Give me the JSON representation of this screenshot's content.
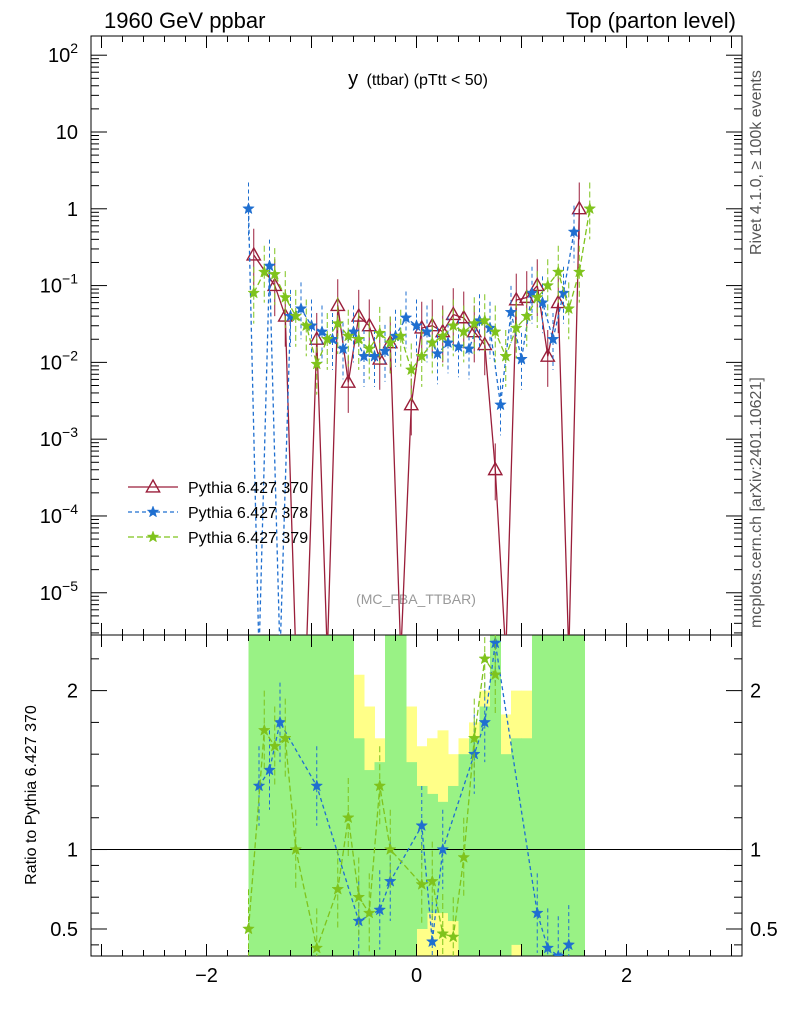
{
  "header": {
    "left": "1960 GeV ppbar",
    "right": "Top (parton level)",
    "title_main": "y",
    "title_sub": "(ttbar)  (pTtt < 50)",
    "side_top": "Rivet 4.1.0, ≥ 100k events",
    "side_bottom": "mcplots.cern.ch [arXiv:2401.10621]",
    "analysis": "(MC_FBA_TTBAR)"
  },
  "chart_data": {
    "type": "line",
    "title": "y (ttbar) (pTtt < 50)",
    "xlim": [
      -3.1,
      3.1
    ],
    "main_ylim_log10": [
      -5.55,
      2.25
    ],
    "ratio_ylim": [
      0.33,
      2.35
    ],
    "ratio_ylabel": "Ratio to Pythia 6.427 370",
    "x_ticks": [
      {
        "v": -2,
        "label": "−2"
      },
      {
        "v": 0,
        "label": "0"
      },
      {
        "v": 2,
        "label": "2"
      }
    ],
    "main_ticks": [
      {
        "exp": 2,
        "base": "10",
        "sup": "2"
      },
      {
        "exp": 1,
        "base": "10",
        "sup": ""
      },
      {
        "exp": 0,
        "base": "1",
        "sup": ""
      },
      {
        "exp": -1,
        "base": "10",
        "sup": "−1"
      },
      {
        "exp": -2,
        "base": "10",
        "sup": "−2"
      },
      {
        "exp": -3,
        "base": "10",
        "sup": "−3"
      },
      {
        "exp": -4,
        "base": "10",
        "sup": "−4"
      },
      {
        "exp": -5,
        "base": "10",
        "sup": "−5"
      }
    ],
    "ratio_ticks": [
      {
        "v": 2,
        "label": "2"
      },
      {
        "v": 1,
        "label": "1"
      },
      {
        "v": 0.5,
        "label": "0.5"
      }
    ],
    "series": [
      {
        "name": "Pythia 6.427 370",
        "color": "#9a1e3a",
        "dash": "",
        "marker": "triangle",
        "x": [
          -1.55,
          -1.35,
          -1.25,
          -1.15,
          -1.05,
          -0.95,
          -0.85,
          -0.75,
          -0.65,
          -0.55,
          -0.45,
          -0.35,
          -0.25,
          -0.15,
          -0.05,
          0.05,
          0.15,
          0.25,
          0.35,
          0.45,
          0.55,
          0.65,
          0.75,
          0.85,
          0.95,
          1.05,
          1.15,
          1.25,
          1.35,
          1.45,
          1.55
        ],
        "values": [
          0.25,
          0.1,
          0.04,
          0,
          0,
          0.02,
          0,
          0.055,
          0.0055,
          0.04,
          0.03,
          0.011,
          0.018,
          0,
          0.0028,
          0.028,
          0.03,
          0.025,
          0.042,
          0.038,
          0.025,
          0.017,
          0.0004,
          0,
          0.065,
          0.07,
          0.1,
          0.012,
          0.06,
          0,
          1.0
        ]
      },
      {
        "name": "Pythia 6.427 378",
        "color": "#1f6fd0",
        "dash": "4,3",
        "marker": "star",
        "x": [
          -1.6,
          -1.5,
          -1.4,
          -1.3,
          -1.2,
          -1.1,
          -1.0,
          -0.9,
          -0.8,
          -0.7,
          -0.6,
          -0.5,
          -0.4,
          -0.3,
          -0.2,
          -0.1,
          0.0,
          0.1,
          0.2,
          0.3,
          0.4,
          0.5,
          0.6,
          0.7,
          0.8,
          0.9,
          1.0,
          1.1,
          1.2,
          1.3,
          1.4,
          1.5
        ],
        "values": [
          1.0,
          0,
          0.18,
          0,
          0.04,
          0.05,
          0.03,
          0.025,
          0.02,
          0.015,
          0.025,
          0.012,
          0.012,
          0.014,
          0.022,
          0.038,
          0.03,
          0.025,
          0.013,
          0.018,
          0.016,
          0.015,
          0.035,
          0.028,
          0.0028,
          0.045,
          0.011,
          0.08,
          0.06,
          0.02,
          0.08,
          0.5
        ]
      },
      {
        "name": "Pythia 6.427 379",
        "color": "#7fc31c",
        "dash": "6,3",
        "marker": "star",
        "x": [
          -1.55,
          -1.45,
          -1.35,
          -1.25,
          -1.15,
          -1.05,
          -0.95,
          -0.85,
          -0.75,
          -0.65,
          -0.55,
          -0.45,
          -0.35,
          -0.25,
          -0.15,
          -0.05,
          0.05,
          0.15,
          0.25,
          0.35,
          0.45,
          0.55,
          0.65,
          0.75,
          0.85,
          0.95,
          1.05,
          1.15,
          1.25,
          1.35,
          1.45,
          1.55,
          1.65
        ],
        "values": [
          0.08,
          0.15,
          0.14,
          0.07,
          0.04,
          0.03,
          0.0095,
          0.02,
          0.032,
          0.022,
          0.02,
          0.015,
          0.024,
          0.018,
          0.022,
          0.008,
          0.012,
          0.018,
          0.022,
          0.03,
          0.025,
          0.032,
          0.035,
          0.025,
          0.012,
          0.028,
          0.04,
          0.07,
          0.1,
          0.15,
          0.05,
          0.15,
          1.0
        ]
      }
    ],
    "ratio_series": [
      {
        "name": "Pythia 6.427 378",
        "color": "#1f6fd0",
        "dash": "4,3",
        "x": [
          -1.5,
          -1.4,
          -1.3,
          -0.95,
          -0.55,
          -0.35,
          -0.25,
          0.05,
          0.15,
          0.25,
          0.55,
          0.65,
          0.75,
          1.15,
          1.25,
          1.35,
          1.45
        ],
        "values": [
          1.4,
          1.5,
          1.8,
          1.4,
          0.55,
          0.62,
          0.8,
          1.15,
          0.42,
          1.0,
          1.6,
          1.8,
          2.3,
          0.6,
          0.38,
          0.33,
          0.4
        ]
      },
      {
        "name": "Pythia 6.427 379",
        "color": "#7fc31c",
        "dash": "6,3",
        "x": [
          -1.6,
          -1.45,
          -1.35,
          -1.25,
          -1.15,
          -0.95,
          -0.75,
          -0.65,
          -0.55,
          -0.45,
          -0.35,
          -0.25,
          0.05,
          0.15,
          0.25,
          0.35,
          0.45,
          0.55,
          0.65,
          0.75
        ],
        "values": [
          0.5,
          1.75,
          1.65,
          1.7,
          1.0,
          0.38,
          0.75,
          1.2,
          0.7,
          0.6,
          1.4,
          1.0,
          0.78,
          0.8,
          0.47,
          0.45,
          0.95,
          1.7,
          2.2,
          2.1
        ]
      }
    ],
    "ratio_bands": {
      "bins_x": [
        -1.6,
        -1.5,
        -1.4,
        -1.3,
        -1.2,
        -1.1,
        -1.0,
        -0.9,
        -0.8,
        -0.7,
        -0.6,
        -0.5,
        -0.4,
        -0.3,
        -0.2,
        -0.1,
        0.0,
        0.1,
        0.2,
        0.3,
        0.4,
        0.5,
        0.6,
        0.7,
        0.8,
        0.9,
        1.0,
        1.1,
        1.2,
        1.3,
        1.4,
        1.5,
        1.6
      ],
      "yellow": [
        [
          0.33,
          2.35
        ],
        [
          0.33,
          2.35
        ],
        [
          0.33,
          2.35
        ],
        [
          0.33,
          2.35
        ],
        [
          0.33,
          2.35
        ],
        [
          0.33,
          2.35
        ],
        [
          0.33,
          2.35
        ],
        [
          0.33,
          2.35
        ],
        [
          0.33,
          2.35
        ],
        [
          0.33,
          2.35
        ],
        [
          0.33,
          2.1
        ],
        [
          0.33,
          1.9
        ],
        [
          0.33,
          1.7
        ],
        [
          0.33,
          2.35
        ],
        [
          0.33,
          2.35
        ],
        [
          0.33,
          1.9
        ],
        [
          0.33,
          1.65
        ],
        [
          0.33,
          1.7
        ],
        [
          0.33,
          1.75
        ],
        [
          0.33,
          1.6
        ],
        [
          0.33,
          1.7
        ],
        [
          0.33,
          1.8
        ],
        [
          0.33,
          2.0
        ],
        [
          0.33,
          2.35
        ],
        [
          0.33,
          1.85
        ],
        [
          0.33,
          2.0
        ],
        [
          0.33,
          2.0
        ],
        [
          0.33,
          2.35
        ],
        [
          0.33,
          2.35
        ],
        [
          0.33,
          2.35
        ],
        [
          0.33,
          2.35
        ],
        [
          0.33,
          2.35
        ]
      ],
      "green": [
        [
          0.33,
          2.35
        ],
        [
          0.33,
          2.35
        ],
        [
          0.33,
          2.35
        ],
        [
          0.33,
          2.35
        ],
        [
          0.33,
          2.35
        ],
        [
          0.33,
          2.35
        ],
        [
          0.33,
          2.35
        ],
        [
          0.33,
          2.35
        ],
        [
          0.33,
          2.35
        ],
        [
          0.33,
          2.35
        ],
        [
          0.33,
          1.7
        ],
        [
          0.33,
          1.5
        ],
        [
          0.33,
          1.55
        ],
        [
          0.33,
          2.35
        ],
        [
          0.33,
          2.35
        ],
        [
          0.33,
          1.55
        ],
        [
          0.5,
          1.4
        ],
        [
          0.6,
          1.35
        ],
        [
          0.6,
          1.3
        ],
        [
          0.55,
          1.4
        ],
        [
          0.33,
          1.6
        ],
        [
          0.33,
          1.7
        ],
        [
          0.33,
          1.9
        ],
        [
          0.33,
          2.35
        ],
        [
          0.33,
          1.6
        ],
        [
          0.4,
          1.7
        ],
        [
          0.33,
          1.7
        ],
        [
          0.33,
          2.35
        ],
        [
          0.33,
          2.35
        ],
        [
          0.33,
          2.35
        ],
        [
          0.33,
          2.35
        ],
        [
          0.33,
          2.35
        ]
      ]
    }
  }
}
